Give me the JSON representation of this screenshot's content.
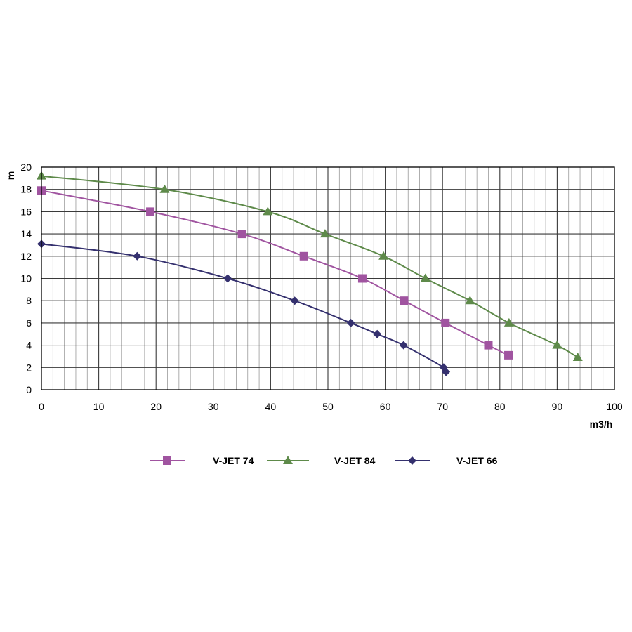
{
  "chart_data": {
    "type": "line",
    "title": "",
    "xlabel": "m3/h",
    "ylabel": "m",
    "xlim": [
      0,
      100
    ],
    "ylim": [
      0,
      20
    ],
    "x_ticks": [
      "0",
      "10",
      "20",
      "30",
      "40",
      "50",
      "60",
      "70",
      "80",
      "90",
      "100"
    ],
    "y_ticks": [
      "0",
      "2",
      "4",
      "6",
      "8",
      "10",
      "12",
      "14",
      "16",
      "18",
      "20"
    ],
    "grid": true,
    "legend_position": "bottom",
    "series": [
      {
        "name": "V-JET 74",
        "color": "#a054a0",
        "marker": "square",
        "points": [
          [
            0,
            17.9
          ],
          [
            19,
            16
          ],
          [
            35,
            14
          ],
          [
            45.8,
            12
          ],
          [
            56,
            10
          ],
          [
            63.3,
            8
          ],
          [
            70.5,
            6
          ],
          [
            78,
            4
          ],
          [
            81.5,
            3.1
          ]
        ]
      },
      {
        "name": "V-JET 84",
        "color": "#5e8a4a",
        "marker": "triangle",
        "points": [
          [
            0,
            19.2
          ],
          [
            21.5,
            18
          ],
          [
            39.5,
            16
          ],
          [
            49.5,
            14
          ],
          [
            59.7,
            12
          ],
          [
            67,
            10
          ],
          [
            74.8,
            8
          ],
          [
            81.6,
            6
          ],
          [
            90,
            4
          ],
          [
            93.6,
            2.9
          ]
        ]
      },
      {
        "name": "V-JET 66",
        "color": "#34306e",
        "marker": "diamond",
        "points": [
          [
            0,
            13.1
          ],
          [
            16.7,
            12
          ],
          [
            32.5,
            10
          ],
          [
            44.2,
            8
          ],
          [
            54,
            6
          ],
          [
            58.6,
            5
          ],
          [
            63.2,
            4
          ],
          [
            70.2,
            2
          ],
          [
            70.6,
            1.6
          ]
        ]
      }
    ]
  }
}
